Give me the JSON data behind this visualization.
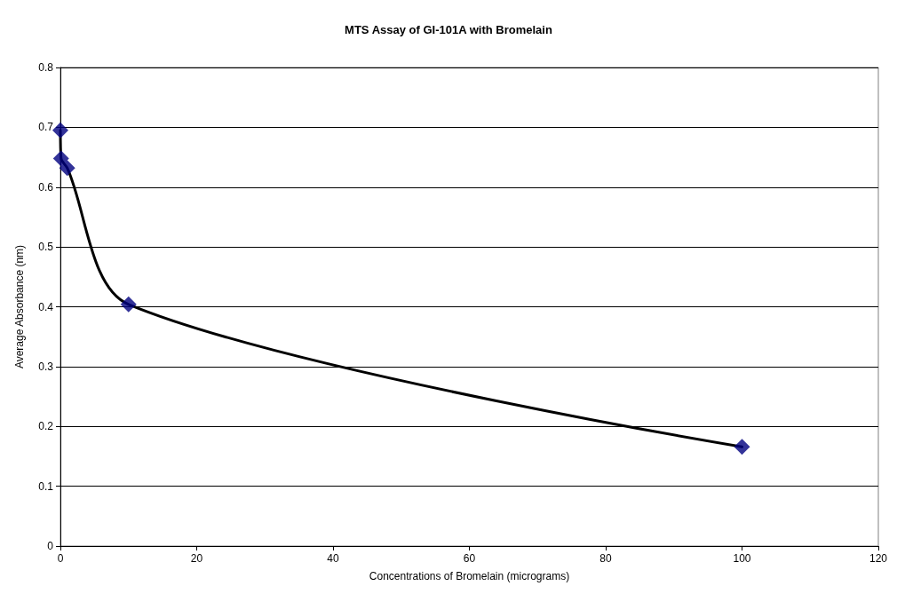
{
  "chart_data": {
    "type": "scatter",
    "title": "MTS Assay of GI-101A with Bromelain",
    "xlabel": "Concentrations of Bromelain (micrograms)",
    "ylabel": "Average Absorbance (nm)",
    "x": [
      0,
      0.1,
      1,
      10,
      100
    ],
    "series": [
      {
        "type": "line",
        "color": "#000000",
        "marker": "none",
        "values": [
          0.695,
          0.648,
          0.632,
          0.404,
          0.166
        ]
      },
      {
        "type": "scatter",
        "color": "#000080",
        "marker": "diamond",
        "values": [
          0.695,
          0.648,
          0.632,
          0.404,
          0.166
        ]
      }
    ],
    "xlim": [
      0,
      120
    ],
    "xticks": [
      0,
      20,
      40,
      60,
      80,
      100,
      120
    ],
    "ylim": [
      0,
      0.8
    ],
    "yticks": [
      0,
      0.1,
      0.2,
      0.3,
      0.4,
      0.5,
      0.6,
      0.7,
      0.8
    ],
    "grid": "y"
  }
}
